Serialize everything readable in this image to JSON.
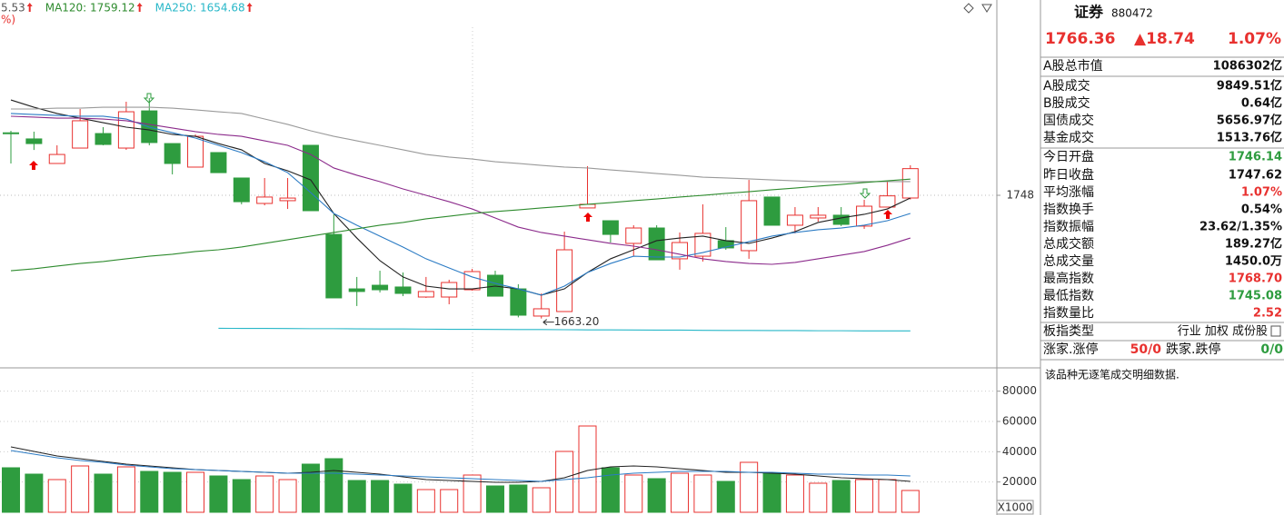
{
  "chart_data": [
    {
      "type": "candlestick",
      "ylim": [
        1629.25,
        1882.4
      ],
      "yticks": [
        1748
      ],
      "grid": true,
      "up_color": "#e8312f",
      "down_color": "#2e9c3f",
      "open": [
        1791.0,
        1786.8,
        1769.9,
        1780.5,
        1790.5,
        1780.5,
        1806.1,
        1783.6,
        1767.4,
        1777.4,
        1759.9,
        1742.4,
        1744.3,
        1782.4,
        1721.1,
        1683.6,
        1686.1,
        1684.9,
        1678.0,
        1678.0,
        1683.0,
        1693.0,
        1683.6,
        1664.9,
        1668.0,
        1739.3,
        1730.5,
        1714.9,
        1725.5,
        1704.3,
        1706.1,
        1716.8,
        1709.9,
        1746.8,
        1727.4,
        1732.4,
        1734.3,
        1726.8,
        1739.9,
        1746.14
      ],
      "high": [
        1792.4,
        1791.8,
        1782.4,
        1807.4,
        1794.9,
        1812.4,
        1814.9,
        1783.6,
        1789.9,
        1777.4,
        1759.9,
        1759.9,
        1759.9,
        1782.4,
        1734.9,
        1691.8,
        1696.1,
        1694.9,
        1691.8,
        1689.9,
        1697.4,
        1696.1,
        1686.8,
        1680.5,
        1723.0,
        1768.0,
        1730.5,
        1727.4,
        1727.4,
        1722.4,
        1741.8,
        1726.1,
        1758.6,
        1746.8,
        1739.9,
        1739.9,
        1739.9,
        1744.9,
        1757.4,
        1768.7
      ],
      "low": [
        1769.9,
        1779.2,
        1769.9,
        1780.5,
        1782.4,
        1779.3,
        1782.4,
        1762.4,
        1767.4,
        1763.6,
        1741.8,
        1741.1,
        1738.6,
        1737.4,
        1677.4,
        1671.8,
        1681.1,
        1678.6,
        1677.4,
        1673.0,
        1682.4,
        1678.6,
        1664.0,
        1663.2,
        1668.0,
        1739.3,
        1715.5,
        1706.1,
        1703.6,
        1696.8,
        1702.4,
        1710.5,
        1704.3,
        1727.4,
        1721.8,
        1729.9,
        1726.8,
        1724.9,
        1739.9,
        1745.08
      ],
      "close": [
        1790.5,
        1783.6,
        1776.1,
        1799.3,
        1783.0,
        1805.5,
        1784.3,
        1769.9,
        1788.6,
        1763.6,
        1743.6,
        1746.8,
        1746.1,
        1737.4,
        1677.4,
        1681.8,
        1683.0,
        1680.5,
        1681.8,
        1688.0,
        1695.5,
        1678.6,
        1665.5,
        1669.9,
        1710.5,
        1741.8,
        1721.1,
        1725.5,
        1703.6,
        1715.5,
        1721.8,
        1711.8,
        1744.3,
        1727.4,
        1734.3,
        1734.3,
        1728.0,
        1740.5,
        1747.62,
        1766.36
      ],
      "low_label": "1663.20",
      "lines": [
        {
          "color": "#222222",
          "values": [
            1813.6,
            1808.6,
            1804.3,
            1801.1,
            1798.0,
            1794.9,
            1793.0,
            1789.9,
            1788.6,
            1783.6,
            1779.3,
            1769.9,
            1764.9,
            1758.6,
            1735.5,
            1718.6,
            1703.0,
            1691.8,
            1685.5,
            1683.6,
            1683.6,
            1685.5,
            1683.6,
            1679.3,
            1683.6,
            1694.9,
            1704.3,
            1710.5,
            1716.8,
            1718.6,
            1719.9,
            1716.8,
            1714.9,
            1718.6,
            1723.0,
            1729.3,
            1732.4,
            1734.9,
            1738.6,
            1746.1
          ]
        },
        {
          "color": "#2b7bc4",
          "values": [
            1804.3,
            1803.6,
            1803.0,
            1802.4,
            1802.4,
            1800.5,
            1794.9,
            1791.1,
            1787.4,
            1782.4,
            1777.4,
            1771.1,
            1763.6,
            1749.9,
            1735.5,
            1727.4,
            1719.9,
            1712.4,
            1704.3,
            1698.0,
            1691.8,
            1687.4,
            1683.6,
            1679.3,
            1685.5,
            1694.9,
            1701.1,
            1706.1,
            1705.5,
            1705.5,
            1708.6,
            1712.4,
            1716.1,
            1719.9,
            1722.4,
            1724.3,
            1725.5,
            1727.4,
            1730.5,
            1735.5
          ]
        },
        {
          "color": "#8b2a8b",
          "values": [
            1802.4,
            1801.8,
            1801.1,
            1801.1,
            1800.5,
            1799.3,
            1796.8,
            1794.3,
            1791.8,
            1789.9,
            1788.6,
            1785.5,
            1782.4,
            1776.1,
            1766.8,
            1761.8,
            1757.4,
            1752.4,
            1748.0,
            1743.6,
            1738.6,
            1732.4,
            1726.1,
            1722.4,
            1719.9,
            1717.4,
            1714.9,
            1713.0,
            1710.5,
            1707.4,
            1704.3,
            1702.4,
            1701.1,
            1700.5,
            1701.8,
            1704.3,
            1706.8,
            1709.3,
            1713.6,
            1718.6
          ]
        },
        {
          "color": "#9a9a9a",
          "values": [
            1807.4,
            1807.4,
            1808.0,
            1808.0,
            1808.6,
            1808.6,
            1808.6,
            1808.0,
            1806.8,
            1805.5,
            1804.3,
            1800.5,
            1796.8,
            1792.4,
            1788.6,
            1785.5,
            1782.4,
            1779.3,
            1776.1,
            1774.3,
            1773.0,
            1771.1,
            1769.9,
            1768.6,
            1767.4,
            1766.8,
            1765.5,
            1764.3,
            1763.0,
            1761.8,
            1760.5,
            1759.9,
            1759.3,
            1758.6,
            1758.0,
            1757.4,
            1757.4,
            1757.4,
            1757.4,
            1757.4
          ]
        },
        {
          "color": "#2e8b2e",
          "values": [
            1696.1,
            1697.4,
            1699.3,
            1701.1,
            1702.4,
            1704.3,
            1706.1,
            1707.4,
            1709.3,
            1710.5,
            1712.4,
            1714.9,
            1717.4,
            1719.9,
            1722.4,
            1724.9,
            1727.4,
            1729.3,
            1731.8,
            1733.6,
            1735.5,
            1736.8,
            1738.0,
            1739.3,
            1740.5,
            1741.8,
            1743.0,
            1744.3,
            1745.5,
            1746.8,
            1748.0,
            1749.3,
            1750.5,
            1751.8,
            1753.0,
            1754.3,
            1755.5,
            1756.8,
            1758.0,
            1759.12
          ]
        },
        {
          "color": "#27b7c8",
          "values": [
            null,
            null,
            null,
            null,
            null,
            null,
            null,
            null,
            null,
            1656.5,
            1656.4,
            1656.4,
            1656.3,
            1656.2,
            1656.2,
            1656.1,
            1656.0,
            1656.0,
            1655.9,
            1655.8,
            1655.8,
            1655.7,
            1655.6,
            1655.6,
            1655.5,
            1655.4,
            1655.4,
            1655.3,
            1655.2,
            1655.2,
            1655.1,
            1655.0,
            1655.0,
            1654.9,
            1654.9,
            1654.8,
            1654.8,
            1654.7,
            1654.7,
            1654.68
          ]
        }
      ],
      "legend": [
        {
          "label": "5.53",
          "color": "#555555"
        },
        {
          "label": "MA120: 1759.12",
          "color": "#2e8b2e"
        },
        {
          "label": "MA250: 1654.68",
          "color": "#27b7c8"
        }
      ],
      "corner_label": "%)"
    },
    {
      "type": "bar",
      "ylim": [
        0,
        95400
      ],
      "yticks": [
        20000,
        40000,
        60000,
        80000
      ],
      "grid": true,
      "unit_label": "X1000",
      "values": [
        29400,
        25200,
        21600,
        30600,
        25200,
        30000,
        27000,
        26400,
        26400,
        24000,
        21600,
        24000,
        21600,
        31800,
        35400,
        21000,
        21000,
        18600,
        15000,
        15000,
        24600,
        17400,
        18000,
        16200,
        40200,
        57000,
        29400,
        24600,
        22200,
        25800,
        24600,
        20400,
        33000,
        25800,
        24600,
        19200,
        21000,
        21600,
        21600,
        14400
      ],
      "lines": [
        {
          "color": "#222222",
          "values": [
            43200,
            40200,
            37200,
            35400,
            33600,
            31800,
            30600,
            29400,
            28200,
            27600,
            27000,
            26400,
            25800,
            26400,
            27600,
            26400,
            25200,
            23400,
            21600,
            21000,
            20400,
            19800,
            19800,
            20400,
            22800,
            27600,
            30000,
            30600,
            30000,
            28800,
            27600,
            26400,
            26400,
            25800,
            25200,
            24000,
            22800,
            22200,
            21600,
            20400
          ]
        },
        {
          "color": "#2b7bc4",
          "values": [
            40800,
            38400,
            36000,
            34200,
            33000,
            31200,
            30000,
            28800,
            28200,
            27600,
            27000,
            26400,
            25800,
            25800,
            25800,
            25200,
            24600,
            24000,
            23400,
            22800,
            22200,
            21600,
            21000,
            20400,
            21600,
            22800,
            24600,
            25800,
            26400,
            27000,
            27000,
            27000,
            26400,
            26400,
            25800,
            25200,
            25200,
            24600,
            24600,
            24000
          ]
        }
      ]
    }
  ],
  "panel": {
    "title": "证券",
    "code": "880472",
    "price": "1766.36",
    "change": "▲18.74",
    "change_pct": "1.07%",
    "rows": [
      {
        "label": "A股总市值",
        "value": "1086302亿",
        "color": "#111111"
      },
      {
        "label": "A股成交",
        "value": "9849.51亿",
        "color": "#111111"
      },
      {
        "label": "B股成交",
        "value": "0.64亿",
        "color": "#111111"
      },
      {
        "label": "国债成交",
        "value": "5656.97亿",
        "color": "#111111"
      },
      {
        "label": "基金成交",
        "value": "1513.76亿",
        "color": "#111111"
      },
      {
        "label": "今日开盘",
        "value": "1746.14",
        "color": "#2e9c3f"
      },
      {
        "label": "昨日收盘",
        "value": "1747.62",
        "color": "#111111"
      },
      {
        "label": "平均涨幅",
        "value": "1.07%",
        "color": "#e8312f"
      },
      {
        "label": "指数换手",
        "value": "0.54%",
        "color": "#111111"
      },
      {
        "label": "指数振幅",
        "value": "23.62/1.35%",
        "color": "#111111"
      },
      {
        "label": "总成交额",
        "value": "189.27亿",
        "color": "#111111"
      },
      {
        "label": "总成交量",
        "value": "1450.0万",
        "color": "#111111"
      },
      {
        "label": "最高指数",
        "value": "1768.70",
        "color": "#e8312f"
      },
      {
        "label": "最低指数",
        "value": "1745.08",
        "color": "#2e9c3f"
      },
      {
        "label": "指数量比",
        "value": "2.52",
        "color": "#e8312f"
      }
    ],
    "type_label": "板指类型",
    "type_value": "行业 加权 成份股",
    "up_label": "涨家.涨停",
    "up_value": "50/0",
    "down_label": "跌家.跌停",
    "down_value": "0/0",
    "note": "该品种无逐笔成交明细数据."
  }
}
